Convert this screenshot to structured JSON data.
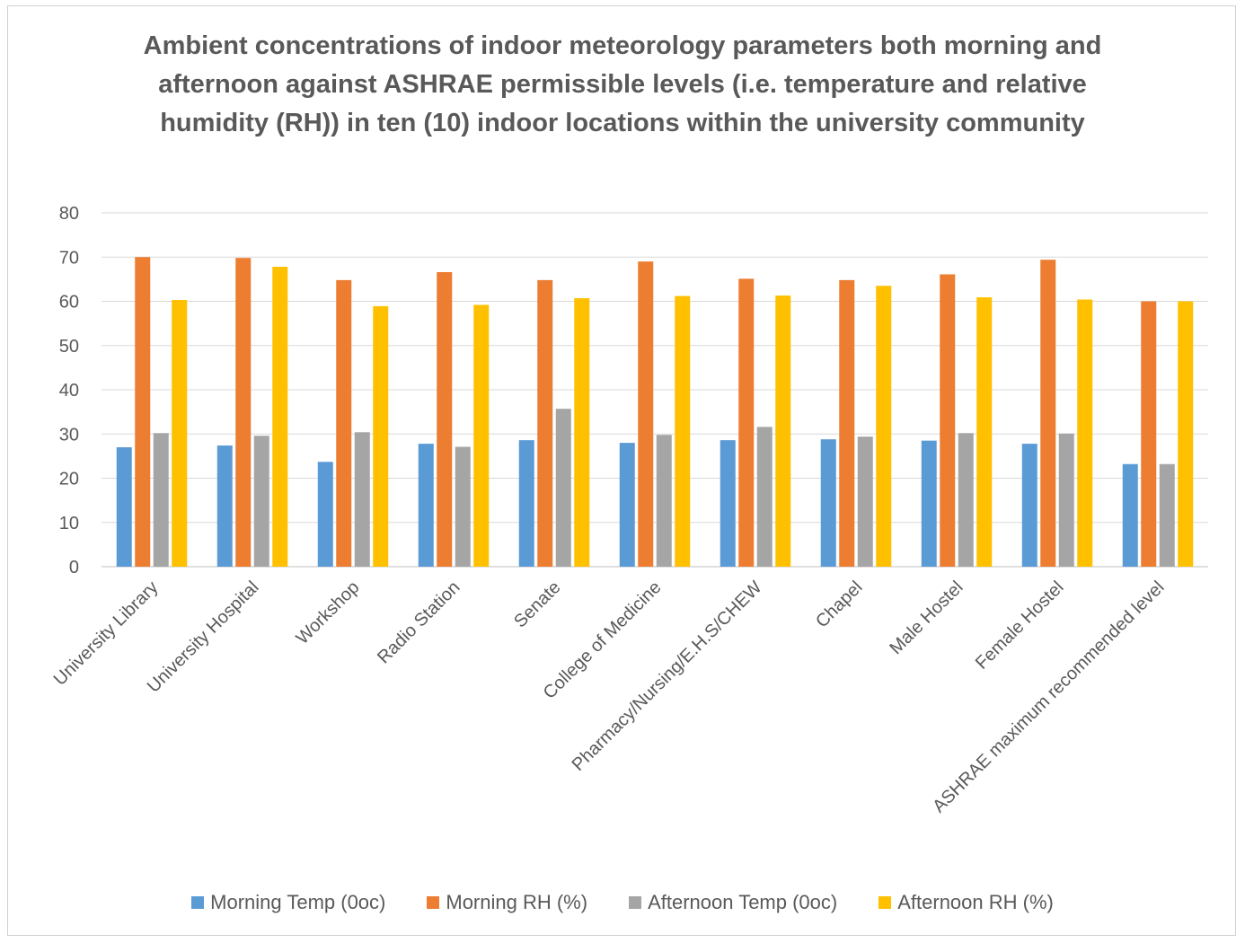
{
  "chart_data": {
    "type": "bar",
    "title": "Ambient concentrations of indoor meteorology parameters both morning and afternoon against ASHRAE permissible levels  (i.e. temperature and relative humidity (RH)) in ten (10) indoor locations within the university community",
    "categories": [
      "University Library",
      "University Hospital",
      "Workshop",
      "Radio Station",
      "Senate",
      "College of Medicine",
      "Pharmacy/Nursing/E.H.S/CHEW",
      "Chapel",
      "Male Hostel",
      "Female Hostel",
      "ASHRAE maximum recommended level"
    ],
    "series": [
      {
        "name": "Morning Temp (0oc)",
        "color": "#5b9bd5",
        "values": [
          27,
          27.4,
          23.7,
          27.8,
          28.6,
          28,
          28.6,
          28.8,
          28.5,
          27.8,
          23.2
        ]
      },
      {
        "name": "Morning RH (%)",
        "color": "#ed7d31",
        "values": [
          70,
          69.8,
          64.8,
          66.6,
          64.8,
          69,
          65.1,
          64.8,
          66.1,
          69.4,
          60
        ]
      },
      {
        "name": "Afternoon Temp (0oc)",
        "color": "#a5a5a5",
        "values": [
          30.2,
          29.6,
          30.4,
          27.1,
          35.7,
          29.8,
          31.6,
          29.4,
          30.2,
          30.1,
          23.2
        ]
      },
      {
        "name": "Afternoon RH (%)",
        "color": "#ffc000",
        "values": [
          60.3,
          67.8,
          58.9,
          59.2,
          60.7,
          61.2,
          61.3,
          63.5,
          60.9,
          60.4,
          60
        ]
      }
    ],
    "ylim": [
      0,
      80
    ],
    "yticks": [
      0,
      10,
      20,
      30,
      40,
      50,
      60,
      70,
      80
    ],
    "grid": true,
    "legend_position": "bottom"
  }
}
